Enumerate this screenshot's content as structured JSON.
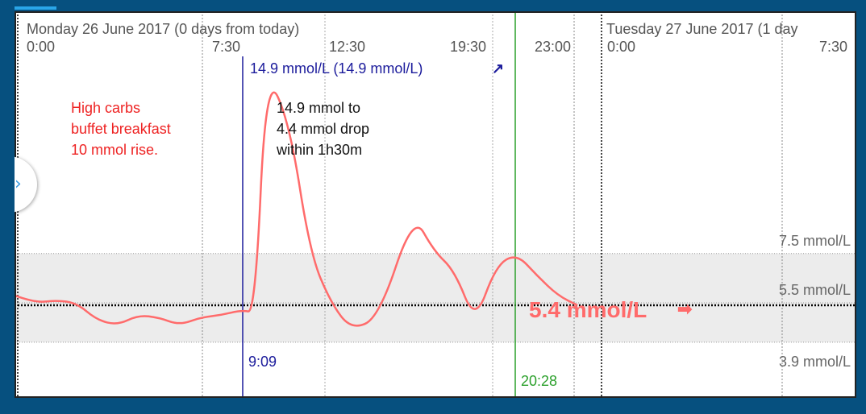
{
  "headers": {
    "day1": "Monday 26 June 2017 (0 days from today)",
    "day2": "Tuesday 27 June 2017 (1 day"
  },
  "time_labels": [
    "0:00",
    "7:30",
    "12:30",
    "19:30",
    "23:00",
    "0:00",
    "7:30"
  ],
  "markers": {
    "peak": {
      "time": "9:09",
      "label": "14.9 mmol/L (14.9 mmol/L)",
      "arrow": "↗"
    },
    "current": {
      "time": "20:28"
    }
  },
  "current_reading": {
    "value": "5.4 mmol/L",
    "arrow": "➡"
  },
  "annotations": {
    "left": [
      "High carbs",
      "buffet breakfast",
      "10 mmol rise."
    ],
    "right": [
      "14.9 mmol to",
      "4.4 mmol drop",
      "within 1h30m"
    ]
  },
  "ref_lines": [
    "7.5 mmol/L",
    "5.5 mmol/L",
    "3.9 mmol/L"
  ],
  "colors": {
    "glucose": "#ff6b6b",
    "peak_marker": "#1c1c9c",
    "current_marker": "#2ca02c",
    "target_band": "#ececec",
    "annotation_red": "#ee2222",
    "frame": "#06507f"
  },
  "chart_data": {
    "type": "line",
    "title": "",
    "xlabel": "",
    "ylabel": "",
    "series": [
      {
        "values": [
          {
            "t": "0:00",
            "y": 5.8
          },
          {
            "t": "0:45",
            "y": 5.5
          },
          {
            "t": "1:30",
            "y": 5.6
          },
          {
            "t": "2:15",
            "y": 5.5
          },
          {
            "t": "3:00",
            "y": 4.8
          },
          {
            "t": "3:45",
            "y": 4.6
          },
          {
            "t": "4:30",
            "y": 5.0
          },
          {
            "t": "5:15",
            "y": 4.9
          },
          {
            "t": "6:00",
            "y": 4.6
          },
          {
            "t": "6:45",
            "y": 4.9
          },
          {
            "t": "7:30",
            "y": 5.0
          },
          {
            "t": "8:15",
            "y": 5.2
          },
          {
            "t": "8:45",
            "y": 5.1
          },
          {
            "t": "9:09",
            "y": 14.9
          },
          {
            "t": "10:00",
            "y": 12.8
          },
          {
            "t": "10:45",
            "y": 7.5
          },
          {
            "t": "11:30",
            "y": 5.5
          },
          {
            "t": "12:15",
            "y": 4.4
          },
          {
            "t": "13:15",
            "y": 4.9
          },
          {
            "t": "14:30",
            "y": 9.1
          },
          {
            "t": "15:15",
            "y": 7.6
          },
          {
            "t": "16:00",
            "y": 6.8
          },
          {
            "t": "16:45",
            "y": 4.7
          },
          {
            "t": "17:30",
            "y": 7.0
          },
          {
            "t": "18:15",
            "y": 7.5
          },
          {
            "t": "19:00",
            "y": 6.6
          },
          {
            "t": "19:45",
            "y": 5.8
          },
          {
            "t": "20:28",
            "y": 5.4
          }
        ]
      }
    ],
    "xticks": [
      "0:00",
      "7:30",
      "12:30",
      "19:30",
      "23:00",
      "0:00",
      "7:30"
    ],
    "reference_lines": [
      7.5,
      5.5,
      3.9
    ],
    "target_range": [
      3.9,
      7.5
    ],
    "current_value": 5.4,
    "grid": true
  }
}
